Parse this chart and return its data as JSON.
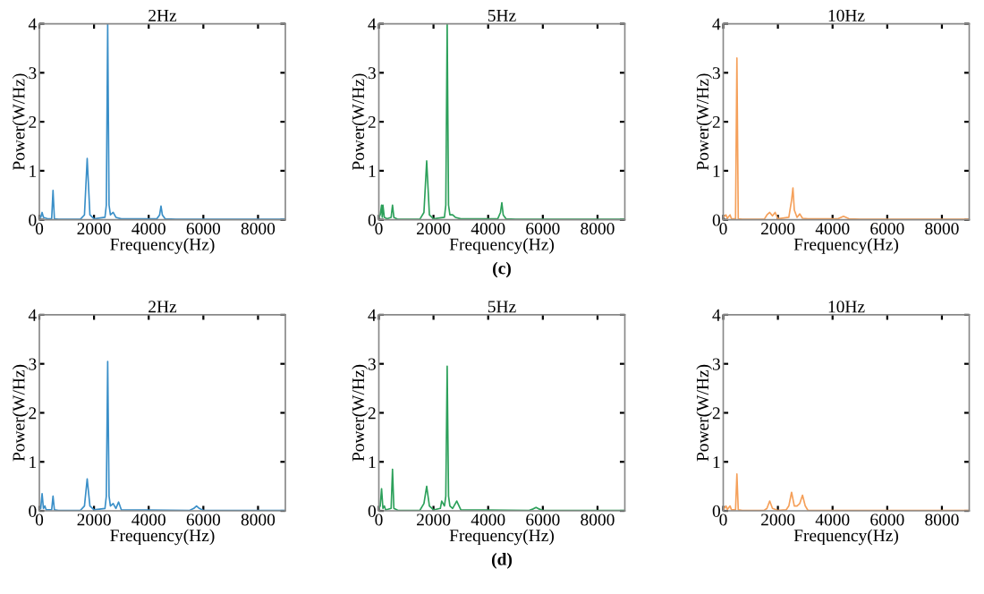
{
  "chart_data": [
    {
      "type": "line",
      "title": "2Hz",
      "xlabel": "Frequency(Hz)",
      "ylabel": "Power(W/Hz)",
      "xlim": [
        0,
        9000
      ],
      "ylim": [
        0,
        4
      ],
      "xticks": [
        0,
        2000,
        4000,
        6000,
        8000
      ],
      "yticks": [
        0,
        1,
        2,
        3,
        4
      ],
      "series": [
        {
          "color": "#3a8fc8",
          "x": [
            0,
            50,
            100,
            150,
            300,
            450,
            500,
            550,
            700,
            1500,
            1650,
            1750,
            1850,
            2000,
            2400,
            2450,
            2500,
            2550,
            2600,
            2700,
            2800,
            3000,
            4300,
            4400,
            4450,
            4500,
            4600,
            5000,
            9000
          ],
          "values": [
            0.05,
            0.05,
            0.15,
            0.05,
            0.02,
            0.02,
            0.6,
            0.02,
            0.01,
            0.01,
            0.1,
            1.25,
            0.1,
            0.02,
            0.05,
            0.3,
            4,
            0.3,
            0.1,
            0.15,
            0.05,
            0.02,
            0.02,
            0.1,
            0.28,
            0.1,
            0.02,
            0.01,
            0.01
          ]
        }
      ]
    },
    {
      "type": "line",
      "title": "5Hz",
      "xlabel": "Frequency(Hz)",
      "ylabel": "Power(W/Hz)",
      "xlim": [
        0,
        9000
      ],
      "ylim": [
        0,
        4
      ],
      "xticks": [
        0,
        2000,
        4000,
        6000,
        8000
      ],
      "yticks": [
        0,
        1,
        2,
        3,
        4
      ],
      "annotations": [
        "(c)"
      ],
      "series": [
        {
          "color": "#2ca05a",
          "x": [
            0,
            50,
            100,
            125,
            150,
            200,
            300,
            450,
            500,
            550,
            700,
            1500,
            1650,
            1750,
            1850,
            2000,
            2400,
            2450,
            2500,
            2550,
            2600,
            2700,
            2800,
            3000,
            4350,
            4450,
            4500,
            4550,
            4650,
            5000,
            9000
          ],
          "values": [
            0.05,
            0.1,
            0.3,
            0.05,
            0.3,
            0.05,
            0.02,
            0.05,
            0.3,
            0.05,
            0.01,
            0.01,
            0.15,
            1.2,
            0.1,
            0.02,
            0.05,
            0.3,
            4,
            0.3,
            0.1,
            0.1,
            0.05,
            0.02,
            0.02,
            0.15,
            0.35,
            0.1,
            0.02,
            0.01,
            0.01
          ]
        }
      ]
    },
    {
      "type": "line",
      "title": "10Hz",
      "xlabel": "Frequency(Hz)",
      "ylabel": "Power(W/Hz)",
      "xlim": [
        0,
        9000
      ],
      "ylim": [
        0,
        4
      ],
      "xticks": [
        0,
        2000,
        4000,
        6000,
        8000
      ],
      "yticks": [
        0,
        1,
        2,
        3,
        4
      ],
      "series": [
        {
          "color": "#f5a05a",
          "x": [
            0,
            100,
            150,
            250,
            300,
            450,
            500,
            550,
            700,
            1500,
            1600,
            1700,
            1800,
            1900,
            2000,
            2400,
            2500,
            2550,
            2600,
            2700,
            2800,
            2900,
            3100,
            4200,
            4400,
            4600,
            5000,
            9000
          ],
          "values": [
            0.05,
            0.1,
            0.03,
            0.1,
            0.02,
            0.02,
            3.3,
            0.02,
            0.01,
            0.01,
            0.1,
            0.15,
            0.08,
            0.15,
            0.02,
            0.05,
            0.4,
            0.65,
            0.2,
            0.05,
            0.12,
            0.03,
            0.02,
            0.02,
            0.07,
            0.02,
            0.01,
            0.01
          ]
        }
      ]
    },
    {
      "type": "line",
      "title": "2Hz",
      "xlabel": "Frequency(Hz)",
      "ylabel": "Power(W/Hz)",
      "xlim": [
        0,
        9000
      ],
      "ylim": [
        0,
        4
      ],
      "xticks": [
        0,
        2000,
        4000,
        6000,
        8000
      ],
      "yticks": [
        0,
        1,
        2,
        3,
        4
      ],
      "series": [
        {
          "color": "#3a8fc8",
          "x": [
            0,
            50,
            100,
            150,
            200,
            250,
            450,
            500,
            550,
            700,
            1500,
            1650,
            1750,
            1850,
            2000,
            2400,
            2450,
            2500,
            2550,
            2600,
            2700,
            2800,
            2900,
            3000,
            5500,
            5650,
            5750,
            5850,
            6000,
            9000
          ],
          "values": [
            0.05,
            0.05,
            0.35,
            0.05,
            0.1,
            0.02,
            0.02,
            0.3,
            0.02,
            0.01,
            0.01,
            0.1,
            0.65,
            0.1,
            0.02,
            0.05,
            0.3,
            3.05,
            0.3,
            0.1,
            0.15,
            0.05,
            0.18,
            0.02,
            0.01,
            0.05,
            0.1,
            0.05,
            0.01,
            0.01
          ]
        }
      ]
    },
    {
      "type": "line",
      "title": "5Hz",
      "xlabel": "Frequency(Hz)",
      "ylabel": "Power(W/Hz)",
      "xlim": [
        0,
        9000
      ],
      "ylim": [
        0,
        4
      ],
      "xticks": [
        0,
        2000,
        4000,
        6000,
        8000
      ],
      "yticks": [
        0,
        1,
        2,
        3,
        4
      ],
      "annotations": [
        "(d)"
      ],
      "series": [
        {
          "color": "#2ca05a",
          "x": [
            0,
            50,
            100,
            150,
            200,
            250,
            450,
            500,
            550,
            700,
            1500,
            1650,
            1750,
            1850,
            2000,
            2250,
            2300,
            2400,
            2450,
            2500,
            2550,
            2600,
            2700,
            2850,
            3000,
            5500,
            5650,
            5750,
            5850,
            6000,
            9000
          ],
          "values": [
            0.05,
            0.1,
            0.45,
            0.05,
            0.1,
            0.02,
            0.05,
            0.85,
            0.05,
            0.01,
            0.01,
            0.15,
            0.5,
            0.1,
            0.02,
            0.05,
            0.2,
            0.1,
            0.3,
            2.95,
            0.3,
            0.1,
            0.05,
            0.2,
            0.02,
            0.01,
            0.04,
            0.07,
            0.04,
            0.01,
            0.01
          ]
        }
      ]
    },
    {
      "type": "line",
      "title": "10Hz",
      "xlabel": "Frequency(Hz)",
      "ylabel": "Power(W/Hz)",
      "xlim": [
        0,
        9000
      ],
      "ylim": [
        0,
        4
      ],
      "xticks": [
        0,
        2000,
        4000,
        6000,
        8000
      ],
      "yticks": [
        0,
        1,
        2,
        3,
        4
      ],
      "series": [
        {
          "color": "#f5a05a",
          "x": [
            0,
            100,
            150,
            250,
            300,
            450,
            500,
            550,
            700,
            1500,
            1600,
            1700,
            1800,
            2000,
            2300,
            2400,
            2500,
            2600,
            2700,
            2800,
            2900,
            3000,
            3100,
            9000
          ],
          "values": [
            0.02,
            0.1,
            0.03,
            0.1,
            0.02,
            0.02,
            0.75,
            0.02,
            0.01,
            0.01,
            0.05,
            0.2,
            0.05,
            0.01,
            0.02,
            0.1,
            0.38,
            0.1,
            0.1,
            0.15,
            0.32,
            0.1,
            0.01,
            0.01
          ]
        }
      ]
    }
  ]
}
